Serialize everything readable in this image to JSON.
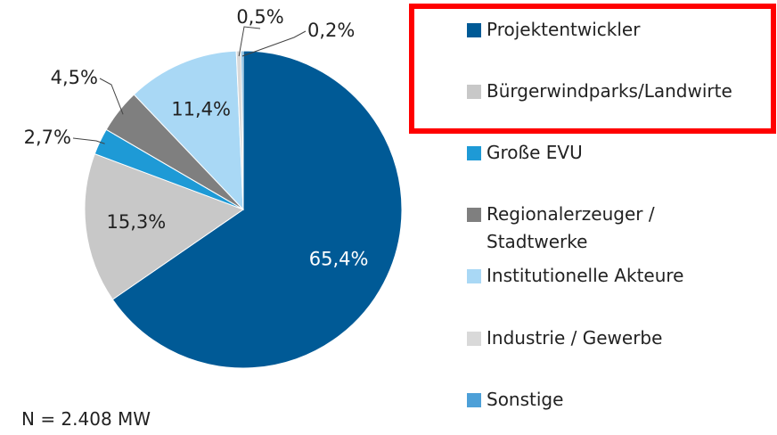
{
  "chart_data": {
    "type": "pie",
    "categories": [
      "Projektentwickler",
      "Bürgerwindparks/Landwirte",
      "Große EVU",
      "Regionalerzeuger / Stadtwerke",
      "Institutionelle Akteure",
      "Industrie / Gewerbe",
      "Sonstige"
    ],
    "values": [
      65.4,
      15.3,
      2.7,
      4.5,
      11.4,
      0.5,
      0.2
    ],
    "value_labels": [
      "65,4%",
      "15,3%",
      "2,7%",
      "4,5%",
      "11,4%",
      "0,5%",
      "0,2%"
    ],
    "colors": [
      "#005a96",
      "#c8c8c8",
      "#1e9ad6",
      "#7f7f7f",
      "#a9d8f5",
      "#d9d9d9",
      "#4da0d8"
    ],
    "note": "N = 2.408 MW"
  }
}
